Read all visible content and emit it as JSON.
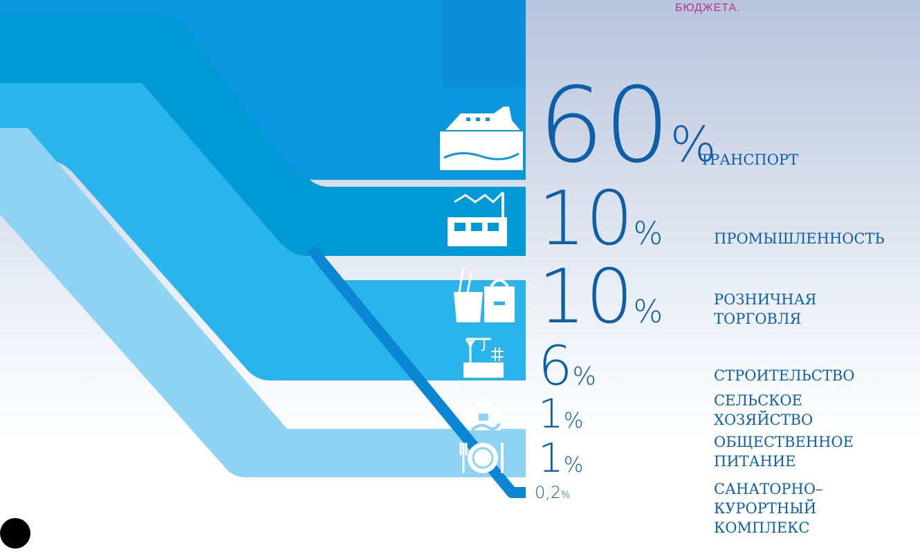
{
  "header": {
    "right_caption": "БЮДЖЕТА."
  },
  "chart_data": {
    "type": "bar",
    "categories": [
      [
        "ТРАНСПОРТ"
      ],
      [
        "ПРОМЫШЛЕННОСТЬ"
      ],
      [
        "РОЗНИЧНАЯ",
        "ТОРГОВЛЯ"
      ],
      [
        "СТРОИТЕЛЬСТВО"
      ],
      [
        "СЕЛЬСКОЕ",
        "ХОЗЯЙСТВО"
      ],
      [
        "ОБЩЕСТВЕННОЕ",
        "ПИТАНИЕ"
      ],
      [
        "САНАТОРНО–",
        "КУРОРТНЫЙ",
        "КОМПЛЕКС"
      ]
    ],
    "values": [
      60,
      10,
      10,
      6,
      1,
      1,
      0.2
    ],
    "value_labels": [
      "60",
      "10",
      "10",
      "6",
      "1",
      "1",
      "0,2"
    ],
    "unit": "%",
    "icons": [
      "ship-icon",
      "factory-icon",
      "shopping-bags-icon",
      "construction-crane-icon",
      "farm-house-icon",
      "dining-plate-icon",
      "none"
    ],
    "colors": {
      "top_band": "#0a96dc",
      "mid_band": "#009ad6",
      "light_band": "#29b4ec",
      "pale_band": "#8fd3f4",
      "line": "#0a86d4",
      "text": "#0c5fa8",
      "header": "#b4328a"
    }
  }
}
